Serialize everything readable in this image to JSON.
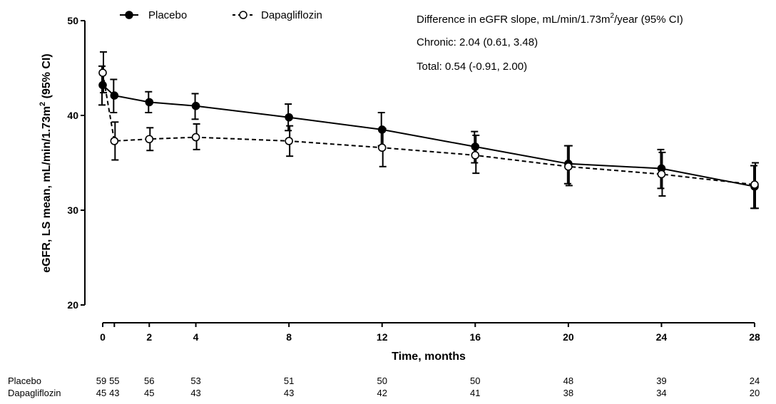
{
  "chart_data": {
    "type": "line",
    "xlabel": "Time, months",
    "ylabel_main": "eGFR, LS mean, mL/min/1.73m",
    "ylabel_sup": "2",
    "ylabel_end": " (95% CI)",
    "ylim": [
      20,
      50
    ],
    "xlim": [
      0,
      28
    ],
    "y_ticks": [
      20,
      30,
      40,
      50
    ],
    "x_ticks": [
      0,
      2,
      4,
      8,
      12,
      16,
      20,
      24,
      28
    ],
    "legend_position": "top-left",
    "series": [
      {
        "name": "Placebo",
        "marker": "filled-circle",
        "line": "solid",
        "color": "#000000",
        "x": [
          0,
          0.5,
          2,
          4,
          8,
          12,
          16,
          20,
          24,
          28
        ],
        "values": [
          43.2,
          42.1,
          41.4,
          41.0,
          39.8,
          38.5,
          36.7,
          34.9,
          34.4,
          32.5
        ],
        "ci_low": [
          41.1,
          40.3,
          40.3,
          39.6,
          38.4,
          36.8,
          35.0,
          32.8,
          32.3,
          30.2
        ],
        "ci_high": [
          45.2,
          43.8,
          42.5,
          42.3,
          41.2,
          40.3,
          38.3,
          36.8,
          36.4,
          34.7
        ]
      },
      {
        "name": "Dapagliflozin",
        "marker": "open-circle",
        "line": "dashed",
        "color": "#000000",
        "x": [
          0,
          0.5,
          2,
          4,
          8,
          12,
          16,
          20,
          24,
          28
        ],
        "values": [
          44.5,
          37.3,
          37.5,
          37.7,
          37.3,
          36.6,
          35.8,
          34.6,
          33.8,
          32.7
        ],
        "ci_low": [
          42.4,
          35.3,
          36.3,
          36.4,
          35.7,
          34.6,
          33.9,
          32.6,
          31.5,
          30.2
        ],
        "ci_high": [
          46.7,
          39.3,
          38.7,
          39.1,
          38.9,
          38.6,
          37.9,
          36.8,
          36.1,
          35.0
        ]
      }
    ],
    "annotations": {
      "header_main": "Difference in eGFR slope, mL/min/1.73m",
      "header_sup": "2",
      "header_end": "/year (95% CI)",
      "chronic": "Chronic: 2.04 (0.61, 3.48)",
      "total": "Total: 0.54 (-0.91, 2.00)"
    },
    "at_risk": {
      "x": [
        0,
        0.5,
        2,
        4,
        8,
        12,
        16,
        20,
        24,
        28
      ],
      "rows": [
        {
          "label": "Placebo",
          "values": [
            "59",
            "55",
            "56",
            "53",
            "51",
            "50",
            "50",
            "48",
            "39",
            "24"
          ]
        },
        {
          "label": "Dapagliflozin",
          "values": [
            "45",
            "43",
            "45",
            "43",
            "43",
            "42",
            "41",
            "38",
            "34",
            "20"
          ]
        }
      ]
    }
  }
}
